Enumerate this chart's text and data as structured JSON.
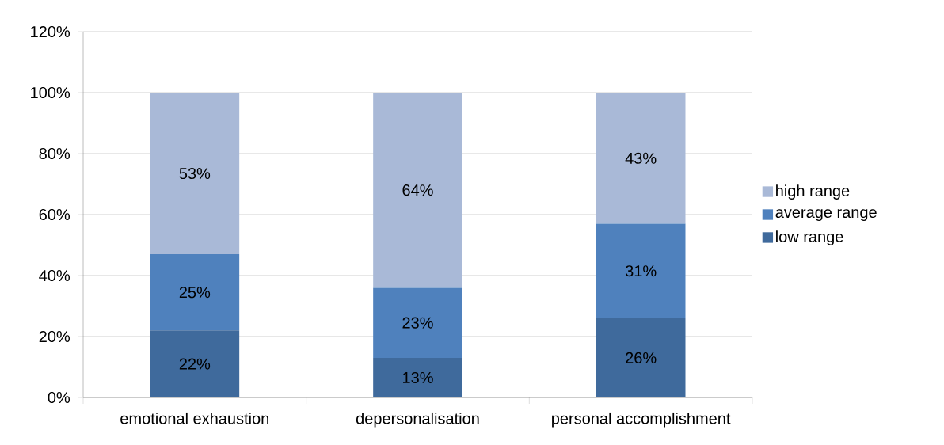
{
  "chart_data": {
    "type": "bar",
    "stacked": true,
    "categories": [
      "emotional exhaustion",
      "depersonalisation",
      "personal accomplishment"
    ],
    "series": [
      {
        "name": "low range",
        "color": "#3f6a9c",
        "values": [
          22,
          13,
          26
        ],
        "value_labels": [
          "22%",
          "13%",
          "26%"
        ]
      },
      {
        "name": "average range",
        "color": "#4f81bd",
        "values": [
          25,
          23,
          31
        ],
        "value_labels": [
          "25%",
          "23%",
          "31%"
        ]
      },
      {
        "name": "high range",
        "color": "#a9b9d7",
        "values": [
          53,
          64,
          43
        ],
        "value_labels": [
          "53%",
          "64%",
          "43%"
        ]
      }
    ],
    "ylim": [
      0,
      120
    ],
    "yticks": [
      {
        "value": 0,
        "label": "0%"
      },
      {
        "value": 20,
        "label": "20%"
      },
      {
        "value": 40,
        "label": "40%"
      },
      {
        "value": 60,
        "label": "60%"
      },
      {
        "value": 80,
        "label": "80%"
      },
      {
        "value": 100,
        "label": "100%"
      },
      {
        "value": 120,
        "label": "120%"
      }
    ],
    "grid": "y",
    "legend": "right"
  }
}
